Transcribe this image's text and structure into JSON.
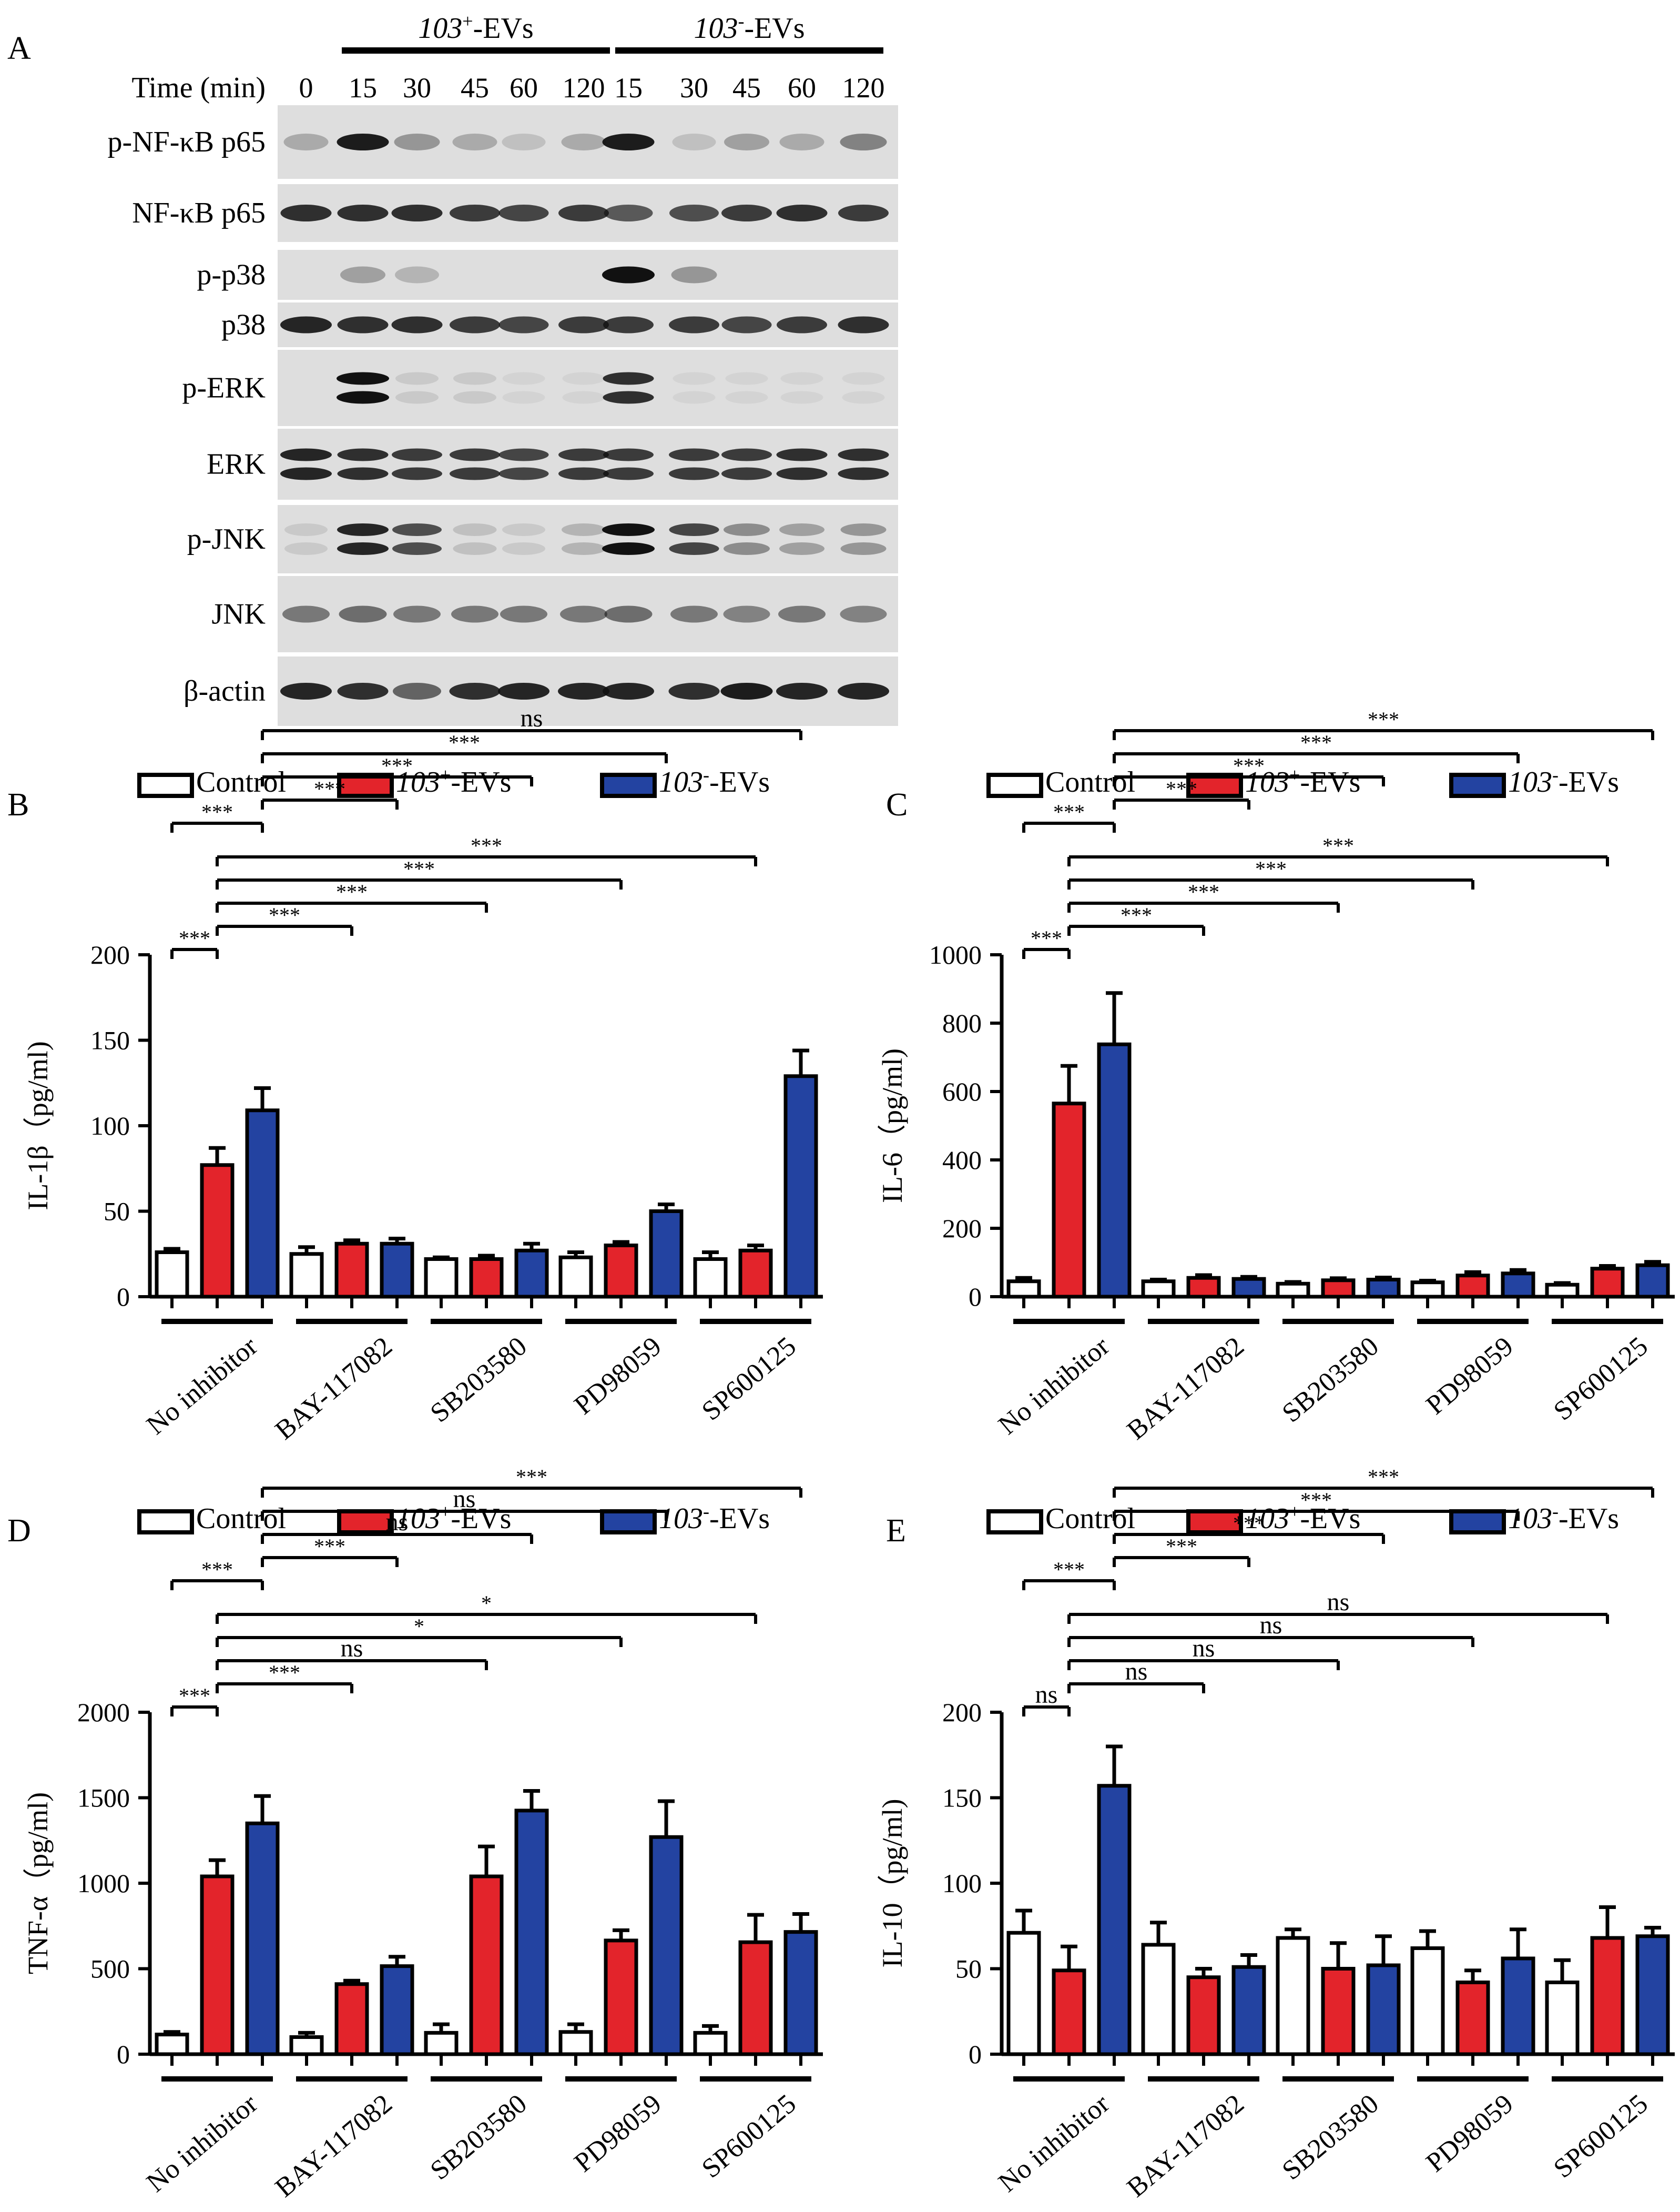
{
  "panelA": {
    "letter": "A",
    "time_label": "Time (min)",
    "groups": [
      {
        "name_italic": "103",
        "name_sup": "+",
        "name_rest": "-EVs"
      },
      {
        "name_italic": "103",
        "name_sup": "-",
        "name_rest": "-EVs"
      }
    ],
    "lanes": [
      "0",
      "15",
      "30",
      "45",
      "60",
      "120",
      "15",
      "30",
      "45",
      "60",
      "120"
    ],
    "blots": [
      {
        "label": "p-NF-κB p65",
        "bands": [
          0.25,
          0.95,
          0.35,
          0.25,
          0.15,
          0.25,
          0.95,
          0.15,
          0.3,
          0.25,
          0.45
        ],
        "double": false
      },
      {
        "label": "NF-κB p65",
        "bands": [
          0.85,
          0.85,
          0.85,
          0.8,
          0.75,
          0.8,
          0.65,
          0.7,
          0.8,
          0.85,
          0.8
        ],
        "double": false
      },
      {
        "label": "p-p38",
        "bands": [
          0,
          0.3,
          0.2,
          0,
          0,
          0,
          1.0,
          0.35,
          0,
          0,
          0
        ],
        "double": false
      },
      {
        "label": "p38",
        "bands": [
          0.9,
          0.85,
          0.85,
          0.8,
          0.75,
          0.8,
          0.8,
          0.8,
          0.75,
          0.8,
          0.85
        ],
        "double": false
      },
      {
        "label": "p-ERK",
        "bands": [
          0,
          1.0,
          0.1,
          0.1,
          0.05,
          0.05,
          0.85,
          0.05,
          0.05,
          0.05,
          0.05
        ],
        "double": true
      },
      {
        "label": "ERK",
        "bands": [
          0.9,
          0.85,
          0.8,
          0.8,
          0.75,
          0.8,
          0.8,
          0.8,
          0.8,
          0.85,
          0.85
        ],
        "double": true
      },
      {
        "label": "p-JNK",
        "bands": [
          0.1,
          0.9,
          0.7,
          0.15,
          0.1,
          0.2,
          1.0,
          0.75,
          0.4,
          0.3,
          0.35
        ],
        "double": true
      },
      {
        "label": "JNK",
        "bands": [
          0.5,
          0.55,
          0.5,
          0.5,
          0.5,
          0.5,
          0.55,
          0.5,
          0.45,
          0.5,
          0.45
        ],
        "double": false
      },
      {
        "label": "β-actin",
        "bands": [
          0.9,
          0.85,
          0.6,
          0.85,
          0.9,
          0.9,
          0.9,
          0.85,
          0.95,
          0.9,
          0.9
        ],
        "double": false
      }
    ]
  },
  "colors": {
    "control": "#ffffff",
    "plus": "#e3242b",
    "minus": "#2343a1",
    "stroke": "#000000",
    "blot_bg": "#dedede",
    "band": "#111111"
  },
  "chart_data": [
    {
      "type": "bar",
      "letter": "B",
      "legend": [
        {
          "text": "Control",
          "italic": "",
          "sup": ""
        },
        {
          "text": "-EVs",
          "italic": "103",
          "sup": "+"
        },
        {
          "text": "-EVs",
          "italic": "103",
          "sup": "-"
        }
      ],
      "ylabel": "IL-1β（pg/ml)",
      "ylim": [
        0,
        200
      ],
      "yticks": [
        "0",
        "50",
        "100",
        "150",
        "200"
      ],
      "categories": [
        "No inhibitor",
        "BAY-117082",
        "SB203580",
        "PD98059",
        "SP600125"
      ],
      "series": [
        {
          "values": [
            26,
            25,
            22,
            23,
            22
          ],
          "errors": [
            2,
            4,
            1,
            3,
            4
          ]
        },
        {
          "values": [
            77,
            31,
            22,
            30,
            27
          ],
          "errors": [
            10,
            2,
            2,
            2,
            3
          ]
        },
        {
          "values": [
            109,
            31,
            27,
            50,
            129
          ],
          "errors": [
            13,
            3,
            4,
            4,
            15
          ]
        }
      ],
      "brackets": [
        {
          "from": [
            0,
            0
          ],
          "to": [
            0,
            1
          ],
          "text": "***",
          "level": 0
        },
        {
          "from": [
            0,
            1
          ],
          "to": [
            1,
            1
          ],
          "text": "***",
          "level": 1
        },
        {
          "from": [
            0,
            1
          ],
          "to": [
            2,
            1
          ],
          "text": "***",
          "level": 2
        },
        {
          "from": [
            0,
            1
          ],
          "to": [
            3,
            1
          ],
          "text": "***",
          "level": 3
        },
        {
          "from": [
            0,
            1
          ],
          "to": [
            4,
            1
          ],
          "text": "***",
          "level": 4
        },
        {
          "from": [
            0,
            0
          ],
          "to": [
            0,
            2
          ],
          "text": "***",
          "level": 5
        },
        {
          "from": [
            0,
            2
          ],
          "to": [
            1,
            2
          ],
          "text": "***",
          "level": 6
        },
        {
          "from": [
            0,
            2
          ],
          "to": [
            2,
            2
          ],
          "text": "***",
          "level": 7
        },
        {
          "from": [
            0,
            2
          ],
          "to": [
            3,
            2
          ],
          "text": "***",
          "level": 8
        },
        {
          "from": [
            0,
            2
          ],
          "to": [
            4,
            2
          ],
          "text": "ns",
          "level": 9
        }
      ]
    },
    {
      "type": "bar",
      "letter": "C",
      "legend": [
        {
          "text": "Control",
          "italic": "",
          "sup": ""
        },
        {
          "text": "-EVs",
          "italic": "103",
          "sup": "+"
        },
        {
          "text": "-EVs",
          "italic": "103",
          "sup": "-"
        }
      ],
      "ylabel": "IL-6（pg/ml)",
      "ylim": [
        0,
        1000
      ],
      "yticks": [
        "0",
        "200",
        "400",
        "600",
        "800",
        "1000"
      ],
      "categories": [
        "No inhibitor",
        "BAY-117082",
        "SB203580",
        "PD98059",
        "SP600125"
      ],
      "series": [
        {
          "values": [
            45,
            45,
            38,
            42,
            35
          ],
          "errors": [
            10,
            5,
            5,
            5,
            5
          ]
        },
        {
          "values": [
            565,
            55,
            48,
            62,
            82
          ],
          "errors": [
            110,
            8,
            6,
            10,
            8
          ]
        },
        {
          "values": [
            738,
            52,
            50,
            68,
            92
          ],
          "errors": [
            150,
            6,
            6,
            10,
            10
          ]
        }
      ],
      "brackets": [
        {
          "from": [
            0,
            0
          ],
          "to": [
            0,
            1
          ],
          "text": "***",
          "level": 0
        },
        {
          "from": [
            0,
            1
          ],
          "to": [
            1,
            1
          ],
          "text": "***",
          "level": 1
        },
        {
          "from": [
            0,
            1
          ],
          "to": [
            2,
            1
          ],
          "text": "***",
          "level": 2
        },
        {
          "from": [
            0,
            1
          ],
          "to": [
            3,
            1
          ],
          "text": "***",
          "level": 3
        },
        {
          "from": [
            0,
            1
          ],
          "to": [
            4,
            1
          ],
          "text": "***",
          "level": 4
        },
        {
          "from": [
            0,
            0
          ],
          "to": [
            0,
            2
          ],
          "text": "***",
          "level": 5
        },
        {
          "from": [
            0,
            2
          ],
          "to": [
            1,
            2
          ],
          "text": "***",
          "level": 6
        },
        {
          "from": [
            0,
            2
          ],
          "to": [
            2,
            2
          ],
          "text": "***",
          "level": 7
        },
        {
          "from": [
            0,
            2
          ],
          "to": [
            3,
            2
          ],
          "text": "***",
          "level": 8
        },
        {
          "from": [
            0,
            2
          ],
          "to": [
            4,
            2
          ],
          "text": "***",
          "level": 9
        }
      ]
    },
    {
      "type": "bar",
      "letter": "D",
      "legend": [
        {
          "text": "Control",
          "italic": "",
          "sup": ""
        },
        {
          "text": "-EVs",
          "italic": "103",
          "sup": "+"
        },
        {
          "text": "-EVs",
          "italic": "103",
          "sup": "-"
        }
      ],
      "ylabel": "TNF-α（pg/ml)",
      "ylim": [
        0,
        2000
      ],
      "yticks": [
        "0",
        "500",
        "1000",
        "1500",
        "2000"
      ],
      "categories": [
        "No inhibitor",
        "BAY-117082",
        "SB203580",
        "PD98059",
        "SP600125"
      ],
      "series": [
        {
          "values": [
            115,
            100,
            125,
            130,
            125
          ],
          "errors": [
            15,
            25,
            50,
            45,
            40
          ]
        },
        {
          "values": [
            1040,
            410,
            1040,
            665,
            655
          ],
          "errors": [
            95,
            20,
            175,
            60,
            160
          ]
        },
        {
          "values": [
            1350,
            515,
            1425,
            1270,
            715
          ],
          "errors": [
            160,
            55,
            115,
            210,
            105
          ]
        }
      ],
      "brackets": [
        {
          "from": [
            0,
            0
          ],
          "to": [
            0,
            1
          ],
          "text": "***",
          "level": 0
        },
        {
          "from": [
            0,
            1
          ],
          "to": [
            1,
            1
          ],
          "text": "***",
          "level": 1
        },
        {
          "from": [
            0,
            1
          ],
          "to": [
            2,
            1
          ],
          "text": "ns",
          "level": 2
        },
        {
          "from": [
            0,
            1
          ],
          "to": [
            3,
            1
          ],
          "text": "*",
          "level": 3
        },
        {
          "from": [
            0,
            1
          ],
          "to": [
            4,
            1
          ],
          "text": "*",
          "level": 4
        },
        {
          "from": [
            0,
            0
          ],
          "to": [
            0,
            2
          ],
          "text": "***",
          "level": 5
        },
        {
          "from": [
            0,
            2
          ],
          "to": [
            1,
            2
          ],
          "text": "***",
          "level": 6
        },
        {
          "from": [
            0,
            2
          ],
          "to": [
            2,
            2
          ],
          "text": "ns",
          "level": 7
        },
        {
          "from": [
            0,
            2
          ],
          "to": [
            3,
            2
          ],
          "text": "ns",
          "level": 8
        },
        {
          "from": [
            0,
            2
          ],
          "to": [
            4,
            2
          ],
          "text": "***",
          "level": 9
        }
      ]
    },
    {
      "type": "bar",
      "letter": "E",
      "legend": [
        {
          "text": "Control",
          "italic": "",
          "sup": ""
        },
        {
          "text": "-EVs",
          "italic": "103",
          "sup": "+"
        },
        {
          "text": "-EVs",
          "italic": "103",
          "sup": "-"
        }
      ],
      "ylabel": "IL-10（pg/ml)",
      "ylim": [
        0,
        200
      ],
      "yticks": [
        "0",
        "50",
        "100",
        "150",
        "200"
      ],
      "categories": [
        "No inhibitor",
        "BAY-117082",
        "SB203580",
        "PD98059",
        "SP600125"
      ],
      "series": [
        {
          "values": [
            71,
            64,
            68,
            62,
            42
          ],
          "errors": [
            13,
            13,
            5,
            10,
            13
          ]
        },
        {
          "values": [
            49,
            45,
            50,
            42,
            68
          ],
          "errors": [
            14,
            5,
            15,
            7,
            18
          ]
        },
        {
          "values": [
            157,
            51,
            52,
            56,
            69
          ],
          "errors": [
            23,
            7,
            17,
            17,
            5
          ]
        }
      ],
      "brackets": [
        {
          "from": [
            0,
            0
          ],
          "to": [
            0,
            1
          ],
          "text": "ns",
          "level": 0
        },
        {
          "from": [
            0,
            1
          ],
          "to": [
            1,
            1
          ],
          "text": "ns",
          "level": 1
        },
        {
          "from": [
            0,
            1
          ],
          "to": [
            2,
            1
          ],
          "text": "ns",
          "level": 2
        },
        {
          "from": [
            0,
            1
          ],
          "to": [
            3,
            1
          ],
          "text": "ns",
          "level": 3
        },
        {
          "from": [
            0,
            1
          ],
          "to": [
            4,
            1
          ],
          "text": "ns",
          "level": 4
        },
        {
          "from": [
            0,
            0
          ],
          "to": [
            0,
            2
          ],
          "text": "***",
          "level": 5
        },
        {
          "from": [
            0,
            2
          ],
          "to": [
            1,
            2
          ],
          "text": "***",
          "level": 6
        },
        {
          "from": [
            0,
            2
          ],
          "to": [
            2,
            2
          ],
          "text": "***",
          "level": 7
        },
        {
          "from": [
            0,
            2
          ],
          "to": [
            3,
            2
          ],
          "text": "***",
          "level": 8
        },
        {
          "from": [
            0,
            2
          ],
          "to": [
            4,
            2
          ],
          "text": "***",
          "level": 9
        }
      ]
    }
  ]
}
